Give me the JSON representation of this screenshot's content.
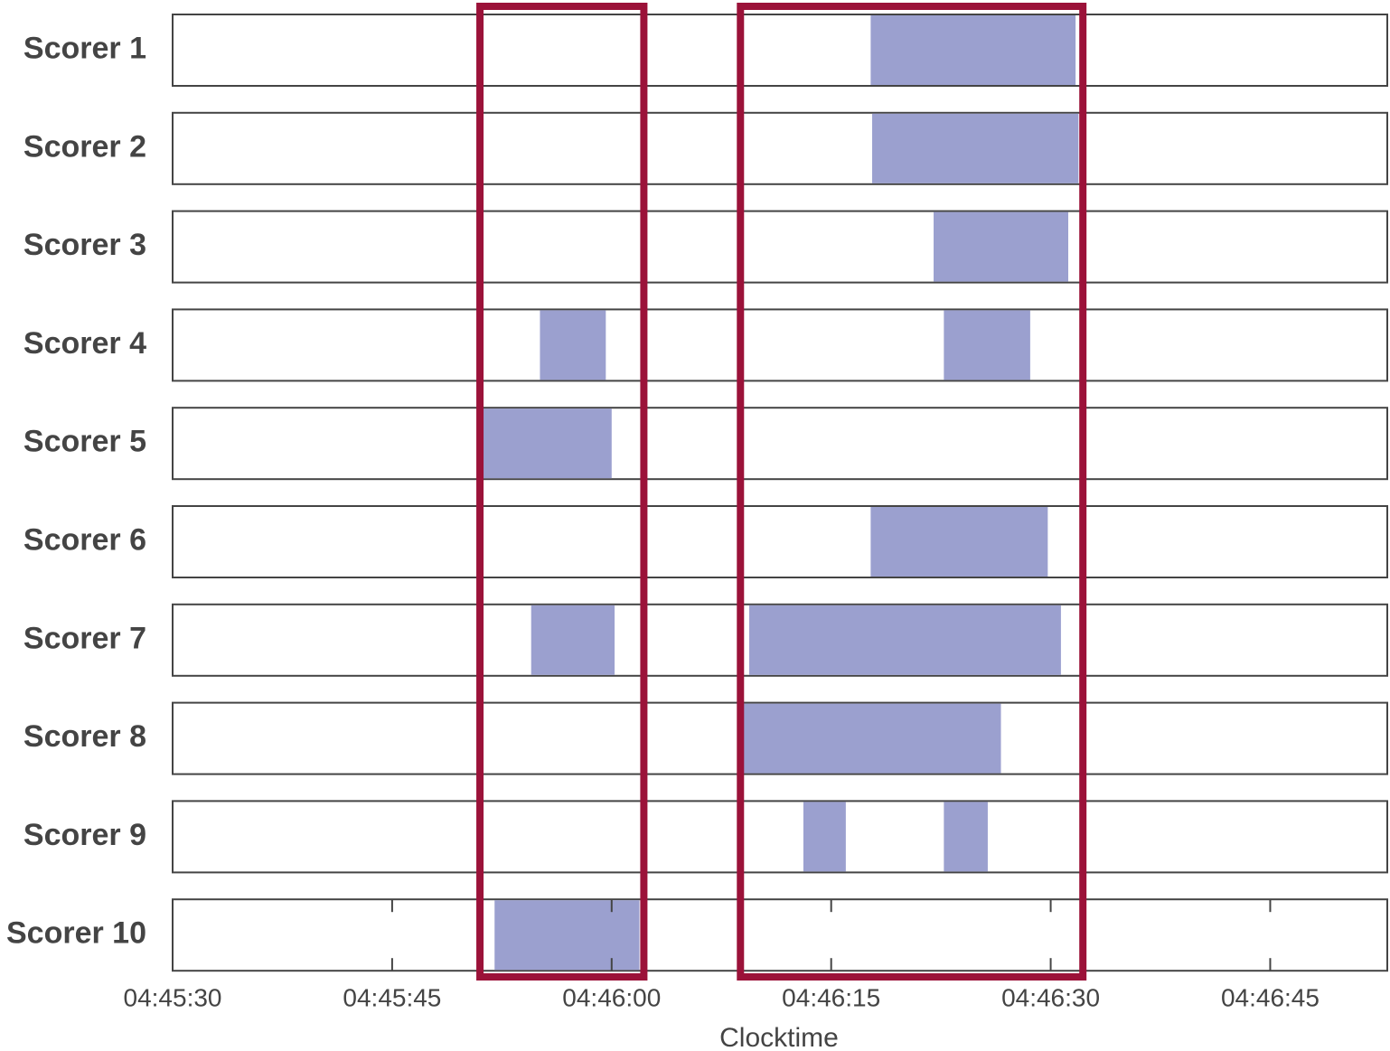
{
  "chart_data": {
    "type": "timeline",
    "xlabel": "Clocktime",
    "xlim": [
      17130,
      17213
    ],
    "xticks": [
      {
        "value": 17130,
        "label": "04:45:30"
      },
      {
        "value": 17145,
        "label": "04:45:45"
      },
      {
        "value": 17160,
        "label": "04:46:00"
      },
      {
        "value": 17175,
        "label": "04:46:15"
      },
      {
        "value": 17190,
        "label": "04:46:30"
      },
      {
        "value": 17205,
        "label": "04:46:45"
      }
    ],
    "color": "#9ba0cf",
    "highlight_color": "#9b1239",
    "series": [
      {
        "name": "Scorer 1",
        "intervals": [
          [
            17177.7,
            17191.7
          ]
        ]
      },
      {
        "name": "Scorer 2",
        "intervals": [
          [
            17177.8,
            17191.9
          ]
        ]
      },
      {
        "name": "Scorer 3",
        "intervals": [
          [
            17182.0,
            17191.2
          ]
        ]
      },
      {
        "name": "Scorer 4",
        "intervals": [
          [
            17155.1,
            17159.6
          ],
          [
            17182.7,
            17188.6
          ]
        ]
      },
      {
        "name": "Scorer 5",
        "intervals": [
          [
            17151.2,
            17160.0
          ]
        ]
      },
      {
        "name": "Scorer 6",
        "intervals": [
          [
            17177.7,
            17189.8
          ]
        ]
      },
      {
        "name": "Scorer 7",
        "intervals": [
          [
            17154.5,
            17160.2
          ],
          [
            17169.4,
            17190.7
          ]
        ]
      },
      {
        "name": "Scorer 8",
        "intervals": [
          [
            17169.0,
            17186.6
          ]
        ]
      },
      {
        "name": "Scorer 9",
        "intervals": [
          [
            17173.1,
            17176.0
          ],
          [
            17182.7,
            17185.7
          ]
        ]
      },
      {
        "name": "Scorer 10",
        "intervals": [
          [
            17152.0,
            17161.9
          ]
        ]
      }
    ],
    "highlights": [
      [
        17151.0,
        17162.2
      ],
      [
        17168.8,
        17192.2
      ]
    ]
  }
}
